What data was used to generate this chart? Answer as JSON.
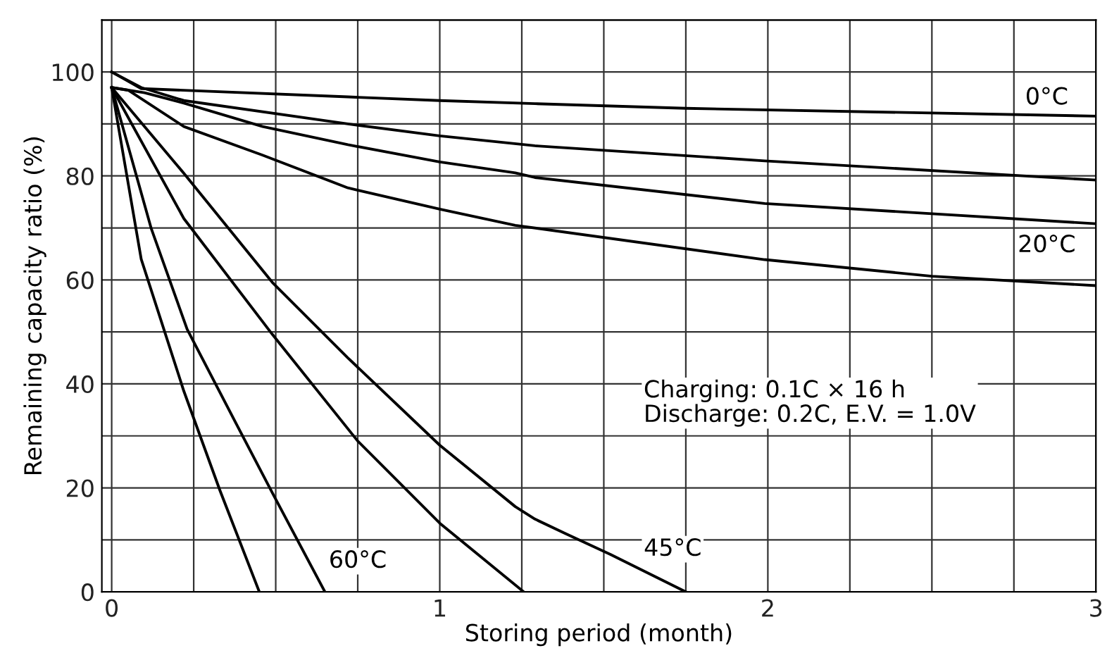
{
  "chart_data": {
    "type": "line",
    "xlabel": "Storing period (month)",
    "ylabel": "Remaining capacity ratio (%)",
    "xlim": [
      -0.03,
      3
    ],
    "ylim": [
      0,
      110
    ],
    "xticks": [
      0,
      {
        "value": 0.25,
        "label": null
      },
      {
        "value": 0.5,
        "label": null
      },
      {
        "value": 0.75,
        "label": null
      },
      1,
      {
        "value": 1.25,
        "label": null
      },
      {
        "value": 1.5,
        "label": null
      },
      {
        "value": 1.75,
        "label": null
      },
      2,
      {
        "value": 2.25,
        "label": null
      },
      {
        "value": 2.5,
        "label": null
      },
      {
        "value": 2.75,
        "label": null
      },
      3
    ],
    "yticks": [
      0,
      {
        "value": 10,
        "label": null
      },
      20,
      {
        "value": 30,
        "label": null
      },
      40,
      {
        "value": 50,
        "label": null
      },
      60,
      {
        "value": 70,
        "label": null
      },
      80,
      {
        "value": 90,
        "label": null
      },
      100,
      {
        "value": 110,
        "label": null
      }
    ],
    "grid": true,
    "line_style": "solid",
    "marker": "none",
    "series": [
      {
        "color": "#000000",
        "x": [
          0,
          0.09,
          0.72,
          1.0,
          1.29,
          1.75,
          3
        ],
        "values": [
          100,
          96.8,
          95.2,
          94.5,
          93.9,
          93.0,
          91.5
        ]
      },
      {
        "color": "#000000",
        "x": [
          0,
          0.09,
          0.22,
          0.72,
          1.0,
          1.29,
          1.99,
          3
        ],
        "values": [
          100,
          97,
          94.5,
          90,
          87.7,
          85.8,
          82.9,
          79.2
        ]
      },
      {
        "color": "#000000",
        "x": [
          0,
          0.1,
          0.22,
          0.46,
          0.72,
          1.0,
          1.23,
          1.29,
          1.99,
          3
        ],
        "values": [
          97,
          96,
          94,
          89.5,
          86,
          82.7,
          80.6,
          79.7,
          74.7,
          70.8
        ]
      },
      {
        "color": "#000000",
        "x": [
          0,
          0.05,
          0.22,
          0.46,
          0.72,
          1.0,
          1.23,
          1.99,
          2.5,
          3
        ],
        "values": [
          97,
          96.5,
          89.5,
          84,
          77.7,
          73.6,
          70.5,
          63.9,
          60.7,
          58.9
        ]
      },
      {
        "color": "#000000",
        "x": [
          0,
          0.22,
          0.49,
          0.72,
          1.0,
          1.23,
          1.29,
          1.38,
          1.52,
          1.75
        ],
        "values": [
          97,
          80.5,
          59.5,
          45,
          28.2,
          16.4,
          14.0,
          11.3,
          7.2,
          0
        ]
      },
      {
        "color": "#000000",
        "x": [
          0,
          0.22,
          0.49,
          0.75,
          1.0,
          1.256
        ],
        "values": [
          97,
          71.8,
          49.5,
          29,
          13.2,
          0
        ]
      },
      {
        "color": "#000000",
        "x": [
          0,
          0.12,
          0.23,
          0.38,
          0.49,
          0.65
        ],
        "values": [
          97,
          70,
          50.5,
          32.3,
          19,
          0
        ]
      },
      {
        "color": "#000000",
        "x": [
          0,
          0.09,
          0.22,
          0.33,
          0.45
        ],
        "values": [
          97,
          64,
          38.6,
          19.5,
          0
        ]
      }
    ],
    "annotations": [
      {
        "text": "0°C",
        "x": 2.85,
        "y": 95
      },
      {
        "text": "20°C",
        "x": 2.85,
        "y": 66.6
      },
      {
        "text": "45°C",
        "x": 1.71,
        "y": 8.2
      },
      {
        "text": "60°C",
        "x": 0.75,
        "y": 5.9
      },
      "Charging: 0.1C × 16 h\nDischarge: 0.2C, E.V. = 1.0V"
    ]
  }
}
